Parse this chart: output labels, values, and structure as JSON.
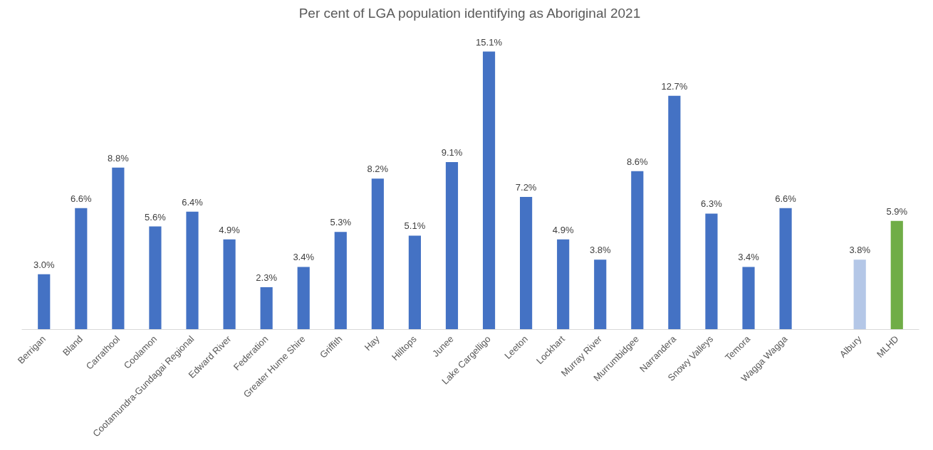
{
  "chart_data": {
    "type": "bar",
    "title": "Per cent of LGA population identifying as Aboriginal 2021",
    "categories": [
      "Berrigan",
      "Bland",
      "Carrathool",
      "Coolamon",
      "Cootamundra-Gundagai Regional",
      "Edward River",
      "Federation",
      "Greater Hume Shire",
      "Griffith",
      "Hay",
      "Hilltops",
      "Junee",
      "Lake Cargelligo",
      "Leeton",
      "Lockhart",
      "Murray River",
      "Murrumbidgee",
      "Narrandera",
      "Snowy Valleys",
      "Temora",
      "Wagga Wagga",
      null,
      "Albury",
      "MLHD"
    ],
    "values": [
      3.0,
      6.6,
      8.8,
      5.6,
      6.4,
      4.9,
      2.3,
      3.4,
      5.3,
      8.2,
      5.1,
      9.1,
      15.1,
      7.2,
      4.9,
      3.8,
      8.6,
      12.7,
      6.3,
      3.4,
      6.6,
      null,
      3.8,
      5.9
    ],
    "value_labels": [
      "3.0%",
      "6.6%",
      "8.8%",
      "5.6%",
      "6.4%",
      "4.9%",
      "2.3%",
      "3.4%",
      "5.3%",
      "8.2%",
      "5.1%",
      "9.1%",
      "15.1%",
      "7.2%",
      "4.9%",
      "3.8%",
      "8.6%",
      "12.7%",
      "6.3%",
      "3.4%",
      "6.6%",
      null,
      "3.8%",
      "5.9%"
    ],
    "colors": [
      "#4472c4",
      "#4472c4",
      "#4472c4",
      "#4472c4",
      "#4472c4",
      "#4472c4",
      "#4472c4",
      "#4472c4",
      "#4472c4",
      "#4472c4",
      "#4472c4",
      "#4472c4",
      "#4472c4",
      "#4472c4",
      "#4472c4",
      "#4472c4",
      "#4472c4",
      "#4472c4",
      "#4472c4",
      "#4472c4",
      "#4472c4",
      null,
      "#b4c7e7",
      "#70ad47"
    ],
    "grid": false
  }
}
